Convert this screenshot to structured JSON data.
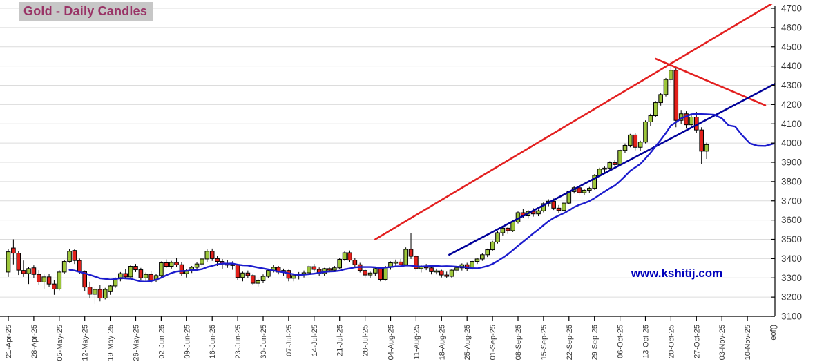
{
  "header": {
    "title": "Gold - Daily Candles"
  },
  "watermark": {
    "text": "www.kshitij.com",
    "color": "#0000bb"
  },
  "chart_data": {
    "type": "candlestick",
    "title": "Gold - Daily Candles",
    "instrument": "Gold",
    "interval": "Daily",
    "grid": true,
    "y_axis": {
      "min": 3100,
      "max": 4700,
      "tick_step": 100,
      "side": "right"
    },
    "x_axis": {
      "tick_labels": [
        "21-Apr-25",
        "28-Apr-25",
        "05-May-25",
        "12-May-25",
        "19-May-25",
        "26-May-25",
        "02-Jun-25",
        "09-Jun-25",
        "16-Jun-25",
        "23-Jun-25",
        "30-Jun-25",
        "07-Jul-25",
        "14-Jul-25",
        "21-Jul-25",
        "28-Jul-25",
        "04-Aug-25",
        "11-Aug-25",
        "18-Aug-25",
        "25-Aug-25",
        "01-Sep-25",
        "08-Sep-25",
        "15-Sep-25",
        "22-Sep-25",
        "29-Sep-25",
        "06-Oct-25",
        "13-Oct-25",
        "20-Oct-25",
        "27-Oct-25",
        "03-Nov-25",
        "10-Nov-25"
      ],
      "end_label": "eof()",
      "days_per_label": 5
    },
    "colors": {
      "up": "#9dc63b",
      "down": "#e3201b",
      "candle_border": "#000000",
      "ma": "#1c1ccd",
      "trend_blue": "#000099",
      "trend_red": "#e32020",
      "grid": "#dcdcdc",
      "axis": "#000000"
    },
    "candles_ohlc": [
      [
        3330,
        3450,
        3305,
        3435
      ],
      [
        3455,
        3500,
        3370,
        3428
      ],
      [
        3428,
        3440,
        3315,
        3340
      ],
      [
        3338,
        3390,
        3305,
        3322
      ],
      [
        3322,
        3355,
        3268,
        3348
      ],
      [
        3352,
        3365,
        3298,
        3318
      ],
      [
        3318,
        3340,
        3262,
        3278
      ],
      [
        3278,
        3318,
        3244,
        3305
      ],
      [
        3305,
        3322,
        3252,
        3268
      ],
      [
        3268,
        3290,
        3212,
        3242
      ],
      [
        3242,
        3340,
        3235,
        3330
      ],
      [
        3330,
        3392,
        3322,
        3385
      ],
      [
        3385,
        3448,
        3378,
        3438
      ],
      [
        3442,
        3450,
        3372,
        3390
      ],
      [
        3390,
        3400,
        3322,
        3332
      ],
      [
        3332,
        3338,
        3230,
        3252
      ],
      [
        3252,
        3280,
        3196,
        3215
      ],
      [
        3215,
        3252,
        3165,
        3240
      ],
      [
        3240,
        3265,
        3178,
        3195
      ],
      [
        3195,
        3248,
        3188,
        3240
      ],
      [
        3228,
        3265,
        3212,
        3258
      ],
      [
        3258,
        3302,
        3248,
        3295
      ],
      [
        3295,
        3330,
        3282,
        3322
      ],
      [
        3322,
        3345,
        3296,
        3305
      ],
      [
        3305,
        3368,
        3298,
        3360
      ],
      [
        3360,
        3372,
        3330,
        3342
      ],
      [
        3342,
        3352,
        3288,
        3300
      ],
      [
        3300,
        3328,
        3282,
        3318
      ],
      [
        3318,
        3336,
        3272,
        3288
      ],
      [
        3288,
        3322,
        3278,
        3312
      ],
      [
        3312,
        3385,
        3305,
        3378
      ],
      [
        3378,
        3396,
        3352,
        3360
      ],
      [
        3360,
        3388,
        3348,
        3380
      ],
      [
        3380,
        3404,
        3358,
        3368
      ],
      [
        3368,
        3382,
        3312,
        3322
      ],
      [
        3322,
        3345,
        3302,
        3338
      ],
      [
        3338,
        3362,
        3325,
        3355
      ],
      [
        3355,
        3380,
        3340,
        3372
      ],
      [
        3372,
        3402,
        3355,
        3398
      ],
      [
        3398,
        3448,
        3382,
        3438
      ],
      [
        3438,
        3452,
        3388,
        3400
      ],
      [
        3400,
        3412,
        3362,
        3385
      ],
      [
        3385,
        3398,
        3348,
        3372
      ],
      [
        3372,
        3392,
        3352,
        3370
      ],
      [
        3370,
        3386,
        3342,
        3368
      ],
      [
        3368,
        3372,
        3288,
        3302
      ],
      [
        3302,
        3332,
        3282,
        3325
      ],
      [
        3325,
        3338,
        3298,
        3312
      ],
      [
        3312,
        3322,
        3262,
        3272
      ],
      [
        3272,
        3295,
        3255,
        3285
      ],
      [
        3285,
        3318,
        3272,
        3308
      ],
      [
        3308,
        3345,
        3300,
        3338
      ],
      [
        3338,
        3368,
        3328,
        3355
      ],
      [
        3355,
        3362,
        3318,
        3330
      ],
      [
        3330,
        3348,
        3312,
        3338
      ],
      [
        3338,
        3342,
        3282,
        3298
      ],
      [
        3298,
        3322,
        3282,
        3312
      ],
      [
        3312,
        3330,
        3292,
        3318
      ],
      [
        3318,
        3338,
        3302,
        3326
      ],
      [
        3326,
        3368,
        3318,
        3358
      ],
      [
        3358,
        3372,
        3332,
        3344
      ],
      [
        3344,
        3354,
        3308,
        3322
      ],
      [
        3322,
        3352,
        3312,
        3348
      ],
      [
        3348,
        3358,
        3328,
        3340
      ],
      [
        3340,
        3362,
        3330,
        3352
      ],
      [
        3352,
        3402,
        3345,
        3396
      ],
      [
        3396,
        3438,
        3388,
        3430
      ],
      [
        3430,
        3442,
        3380,
        3392
      ],
      [
        3392,
        3402,
        3355,
        3368
      ],
      [
        3368,
        3378,
        3328,
        3338
      ],
      [
        3338,
        3348,
        3302,
        3315
      ],
      [
        3315,
        3332,
        3298,
        3325
      ],
      [
        3325,
        3355,
        3310,
        3348
      ],
      [
        3348,
        3352,
        3282,
        3292
      ],
      [
        3292,
        3362,
        3285,
        3355
      ],
      [
        3355,
        3385,
        3342,
        3378
      ],
      [
        3378,
        3395,
        3362,
        3382
      ],
      [
        3382,
        3398,
        3355,
        3368
      ],
      [
        3368,
        3458,
        3360,
        3448
      ],
      [
        3448,
        3534,
        3398,
        3412
      ],
      [
        3412,
        3418,
        3338,
        3348
      ],
      [
        3348,
        3368,
        3328,
        3358
      ],
      [
        3358,
        3372,
        3340,
        3352
      ],
      [
        3352,
        3362,
        3318,
        3332
      ],
      [
        3332,
        3348,
        3318,
        3336
      ],
      [
        3336,
        3342,
        3302,
        3315
      ],
      [
        3315,
        3332,
        3298,
        3308
      ],
      [
        3308,
        3346,
        3300,
        3340
      ],
      [
        3340,
        3358,
        3325,
        3352
      ],
      [
        3352,
        3375,
        3338,
        3368
      ],
      [
        3368,
        3378,
        3335,
        3348
      ],
      [
        3348,
        3392,
        3342,
        3385
      ],
      [
        3385,
        3405,
        3372,
        3398
      ],
      [
        3398,
        3428,
        3388,
        3420
      ],
      [
        3420,
        3452,
        3408,
        3446
      ],
      [
        3446,
        3492,
        3438,
        3486
      ],
      [
        3486,
        3542,
        3478,
        3534
      ],
      [
        3534,
        3568,
        3520,
        3558
      ],
      [
        3558,
        3566,
        3528,
        3545
      ],
      [
        3545,
        3598,
        3538,
        3590
      ],
      [
        3590,
        3645,
        3582,
        3638
      ],
      [
        3638,
        3658,
        3612,
        3622
      ],
      [
        3622,
        3652,
        3608,
        3645
      ],
      [
        3645,
        3662,
        3618,
        3632
      ],
      [
        3632,
        3655,
        3620,
        3648
      ],
      [
        3648,
        3692,
        3640,
        3685
      ],
      [
        3685,
        3708,
        3672,
        3698
      ],
      [
        3698,
        3712,
        3652,
        3662
      ],
      [
        3662,
        3678,
        3638,
        3650
      ],
      [
        3650,
        3692,
        3645,
        3688
      ],
      [
        3688,
        3752,
        3682,
        3748
      ],
      [
        3748,
        3775,
        3738,
        3768
      ],
      [
        3768,
        3778,
        3728,
        3742
      ],
      [
        3742,
        3762,
        3728,
        3755
      ],
      [
        3755,
        3772,
        3742,
        3765
      ],
      [
        3765,
        3838,
        3758,
        3832
      ],
      [
        3832,
        3872,
        3825,
        3865
      ],
      [
        3865,
        3878,
        3842,
        3870
      ],
      [
        3870,
        3905,
        3858,
        3898
      ],
      [
        3898,
        3912,
        3868,
        3888
      ],
      [
        3888,
        3968,
        3882,
        3962
      ],
      [
        3962,
        3998,
        3948,
        3988
      ],
      [
        3988,
        4048,
        3978,
        4042
      ],
      [
        4042,
        4052,
        3962,
        3978
      ],
      [
        3978,
        4012,
        3958,
        4005
      ],
      [
        4005,
        4118,
        3998,
        4110
      ],
      [
        4110,
        4152,
        4088,
        4142
      ],
      [
        4142,
        4218,
        4135,
        4210
      ],
      [
        4210,
        4262,
        4195,
        4252
      ],
      [
        4252,
        4338,
        4242,
        4330
      ],
      [
        4330,
        4425,
        4312,
        4378
      ],
      [
        4378,
        4392,
        4082,
        4118
      ],
      [
        4118,
        4172,
        4098,
        4152
      ],
      [
        4152,
        4165,
        4075,
        4095
      ],
      [
        4095,
        4148,
        4078,
        4135
      ],
      [
        4135,
        4162,
        4052,
        4068
      ],
      [
        4068,
        4082,
        3892,
        3958
      ],
      [
        3958,
        4002,
        3918,
        3992
      ]
    ],
    "overlays": {
      "moving_average": {
        "period": 13,
        "color": "#1c1ccd",
        "projection_points": [
          [
            138.5,
            4147
          ],
          [
            140,
            4128
          ],
          [
            141.3,
            4092
          ],
          [
            142.6,
            4086
          ],
          [
            144,
            4040
          ],
          [
            145.5,
            3998
          ],
          [
            147,
            3986
          ],
          [
            148.5,
            3985
          ],
          [
            150,
            3996
          ]
        ]
      },
      "trendlines": [
        {
          "name": "rising-support-red",
          "color": "#e32020",
          "width": 2.6,
          "points": [
            [
              72,
              3500
            ],
            [
              153,
              4775
            ]
          ]
        },
        {
          "name": "falling-resistance-red",
          "color": "#e32020",
          "width": 2.6,
          "points": [
            [
              127,
              4438
            ],
            [
              148.5,
              4196
            ]
          ]
        },
        {
          "name": "rising-support-blue",
          "color": "#000099",
          "width": 2.6,
          "points": [
            [
              86.5,
              3420
            ],
            [
              151.5,
              4323
            ]
          ]
        }
      ]
    }
  }
}
